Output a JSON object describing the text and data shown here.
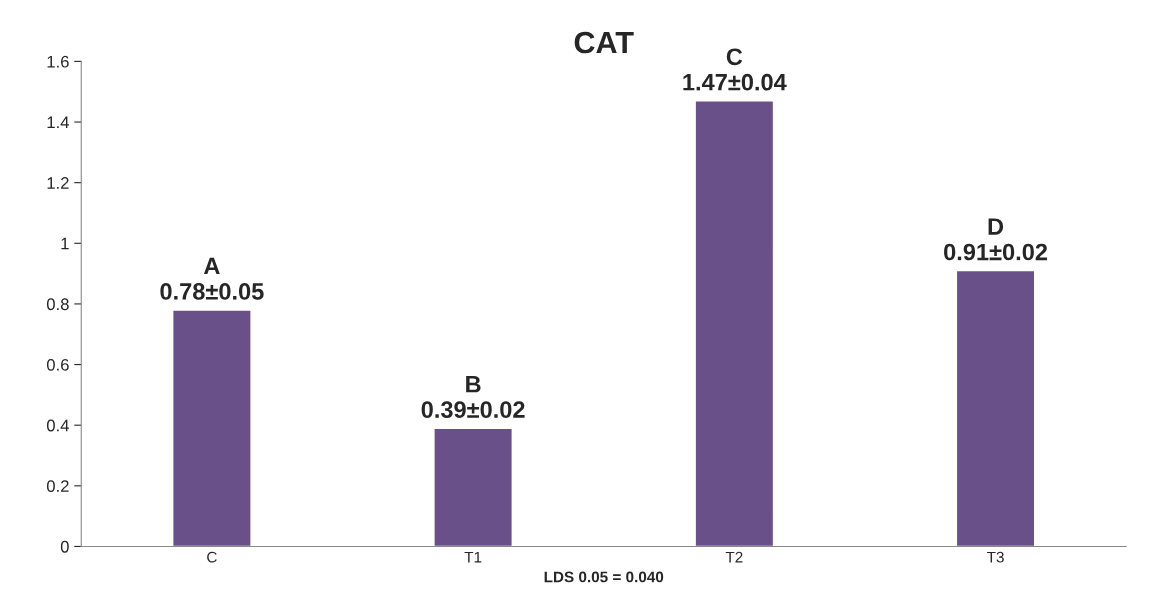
{
  "chart_data": {
    "type": "bar",
    "title": "CAT",
    "xlabel": "LDS 0.05 = 0.040",
    "categories": [
      "C",
      "T1",
      "T2",
      "T3"
    ],
    "values": [
      0.78,
      0.39,
      1.47,
      0.91
    ],
    "value_labels": [
      "A\n0.78±0.05",
      "B\n0.39±0.02",
      "C\n1.47±0.04",
      "D\n0.91±0.02"
    ],
    "color": "#6a5089",
    "ylim": [
      0,
      1.6
    ],
    "yticks": [
      0,
      {
        "value": 0.2,
        "label": "0.2"
      },
      {
        "value": 0.4,
        "label": "0.4"
      },
      {
        "value": 0.6,
        "label": "0.6"
      },
      {
        "value": 0.8,
        "label": "0.8"
      },
      1,
      {
        "value": 1.2,
        "label": "1.2"
      },
      {
        "value": 1.4,
        "label": "1.4"
      },
      {
        "value": 1.6,
        "label": "1.6"
      }
    ],
    "grid": false,
    "legend": false
  }
}
